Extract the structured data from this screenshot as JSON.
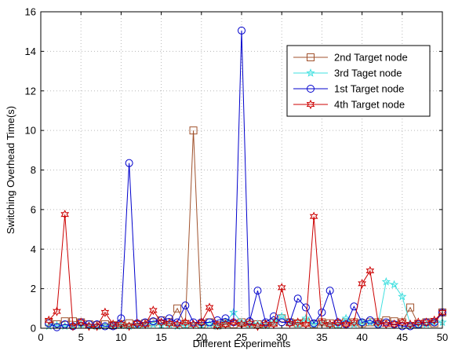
{
  "chart_data": {
    "type": "line",
    "title": "",
    "xlabel": "Different Experiments",
    "ylabel": "Switching Overhead Time(s)",
    "xlim": [
      0,
      50
    ],
    "ylim": [
      0,
      16
    ],
    "xticks": [
      0,
      5,
      10,
      15,
      20,
      25,
      30,
      35,
      40,
      45,
      50
    ],
    "yticks": [
      0,
      2,
      4,
      6,
      8,
      10,
      12,
      14,
      16
    ],
    "grid": true,
    "legend_position": "top-right",
    "x": [
      1,
      2,
      3,
      4,
      5,
      6,
      7,
      8,
      9,
      10,
      11,
      12,
      13,
      14,
      15,
      16,
      17,
      18,
      19,
      20,
      21,
      22,
      23,
      24,
      25,
      26,
      27,
      28,
      29,
      30,
      31,
      32,
      33,
      34,
      35,
      36,
      37,
      38,
      39,
      40,
      41,
      42,
      43,
      44,
      45,
      46,
      47,
      48,
      49,
      50
    ],
    "series": [
      {
        "name": "2nd Target node",
        "color": "#a0522d",
        "marker": "square",
        "values": [
          0.3,
          0.2,
          0.35,
          0.35,
          0.3,
          0.2,
          0.15,
          0.2,
          0.15,
          0.2,
          0.25,
          0.2,
          0.25,
          0.3,
          0.4,
          0.3,
          1.0,
          0.2,
          10.0,
          0.2,
          0.3,
          0.15,
          0.25,
          0.2,
          0.3,
          0.25,
          0.2,
          0.2,
          0.3,
          0.5,
          0.3,
          0.25,
          0.3,
          0.2,
          0.3,
          0.25,
          0.2,
          0.3,
          0.3,
          0.25,
          0.3,
          0.3,
          0.4,
          0.35,
          0.3,
          1.05,
          0.2,
          0.3,
          0.25,
          0.8
        ]
      },
      {
        "name": "3rd Taget node",
        "color": "#40e0e0",
        "marker": "star",
        "values": [
          0.1,
          0.15,
          0.1,
          0.15,
          0.2,
          0.15,
          0.1,
          0.1,
          0.2,
          0.15,
          0.1,
          0.15,
          0.2,
          0.2,
          0.15,
          0.2,
          0.1,
          0.15,
          0.2,
          0.15,
          0.2,
          0.1,
          0.3,
          0.8,
          0.3,
          0.2,
          0.2,
          0.15,
          0.3,
          0.6,
          0.3,
          0.2,
          0.5,
          0.2,
          0.3,
          0.2,
          0.15,
          0.5,
          0.2,
          0.3,
          0.3,
          0.2,
          2.35,
          2.2,
          1.6,
          0.2,
          0.15,
          0.2,
          0.3,
          0.3
        ]
      },
      {
        "name": "1st Target node",
        "color": "#0000cc",
        "marker": "circle",
        "values": [
          0.25,
          0.05,
          0.2,
          0.1,
          0.3,
          0.2,
          0.2,
          0.1,
          0.1,
          0.5,
          8.35,
          0.25,
          0.3,
          0.35,
          0.4,
          0.5,
          0.3,
          1.15,
          0.3,
          0.3,
          0.3,
          0.4,
          0.5,
          0.3,
          15.05,
          0.35,
          1.9,
          0.3,
          0.6,
          0.3,
          0.3,
          1.5,
          1.05,
          0.25,
          0.8,
          1.9,
          0.3,
          0.2,
          1.1,
          0.3,
          0.4,
          0.2,
          0.3,
          0.2,
          0.1,
          0.1,
          0.2,
          0.3,
          0.3,
          0.8
        ]
      },
      {
        "name": "4th Target node",
        "color": "#cc0000",
        "marker": "hexagram",
        "values": [
          0.4,
          0.85,
          5.75,
          0.1,
          0.3,
          0.1,
          0.1,
          0.8,
          0.2,
          0.2,
          0.1,
          0.25,
          0.2,
          0.9,
          0.3,
          0.25,
          0.2,
          0.3,
          0.2,
          0.3,
          1.05,
          0.15,
          0.2,
          0.3,
          0.2,
          0.25,
          0.1,
          0.2,
          0.2,
          2.05,
          0.25,
          0.3,
          0.2,
          5.65,
          0.3,
          0.2,
          0.3,
          0.2,
          0.3,
          2.25,
          2.9,
          0.3,
          0.2,
          0.2,
          0.3,
          0.2,
          0.3,
          0.3,
          0.4,
          0.8
        ]
      }
    ]
  }
}
